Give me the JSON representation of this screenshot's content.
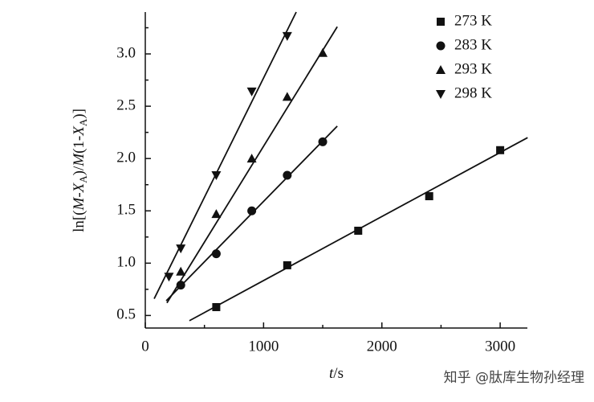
{
  "chart_data": {
    "type": "scatter",
    "xlabel_parts": [
      "t",
      "/s"
    ],
    "ylabel_parts": [
      "ln[(",
      "M",
      "-",
      "X",
      "A",
      ")/",
      "M",
      "(1-",
      "X",
      "A",
      ")]"
    ],
    "xlim": [
      0,
      3230
    ],
    "ylim": [
      0.38,
      3.4
    ],
    "xticks": [
      0,
      1000,
      2000,
      3000
    ],
    "xminorticks": [
      500,
      1500,
      2500
    ],
    "yticks": [
      0.5,
      {
        "value": 1,
        "label": "1.0"
      },
      1.5,
      {
        "value": 2,
        "label": "2.0"
      },
      2.5,
      {
        "value": 3,
        "label": "3.0"
      }
    ],
    "yminorticks": [
      0.75,
      1.25,
      1.75,
      2.25,
      2.75,
      3.25
    ],
    "legend": "top-right",
    "series": [
      {
        "name": "273 K",
        "color": "#111111",
        "marker": "square",
        "x": [
          600,
          1200,
          1800,
          2400,
          3000
        ],
        "values": [
          0.58,
          0.98,
          1.31,
          1.64,
          2.08
        ],
        "fit": {
          "x": [
            373,
            3232
          ],
          "y": [
            0.45,
            2.2
          ]
        }
      },
      {
        "name": "283 K",
        "color": "#111111",
        "marker": "circle",
        "x": [
          300,
          600,
          900,
          1200,
          1500
        ],
        "values": [
          0.79,
          1.09,
          1.5,
          1.84,
          2.16
        ],
        "fit": {
          "x": [
            177,
            1623
          ],
          "y": [
            0.64,
            2.31
          ]
        }
      },
      {
        "name": "293 K",
        "color": "#111111",
        "marker": "triangle-up",
        "x": [
          300,
          600,
          900,
          1200,
          1500
        ],
        "values": [
          0.92,
          1.47,
          2.0,
          2.59,
          3.01
        ],
        "fit": {
          "x": [
            183,
            1623
          ],
          "y": [
            0.62,
            3.26
          ]
        }
      },
      {
        "name": "298 K",
        "color": "#111111",
        "marker": "triangle-down",
        "x": [
          200,
          300,
          600,
          900,
          1200
        ],
        "values": [
          0.87,
          1.14,
          1.84,
          2.64,
          3.17
        ],
        "fit": {
          "x": [
            75,
            1276
          ],
          "y": [
            0.66,
            3.4
          ]
        }
      }
    ]
  },
  "watermark": "知乎 @肽库生物孙经理"
}
